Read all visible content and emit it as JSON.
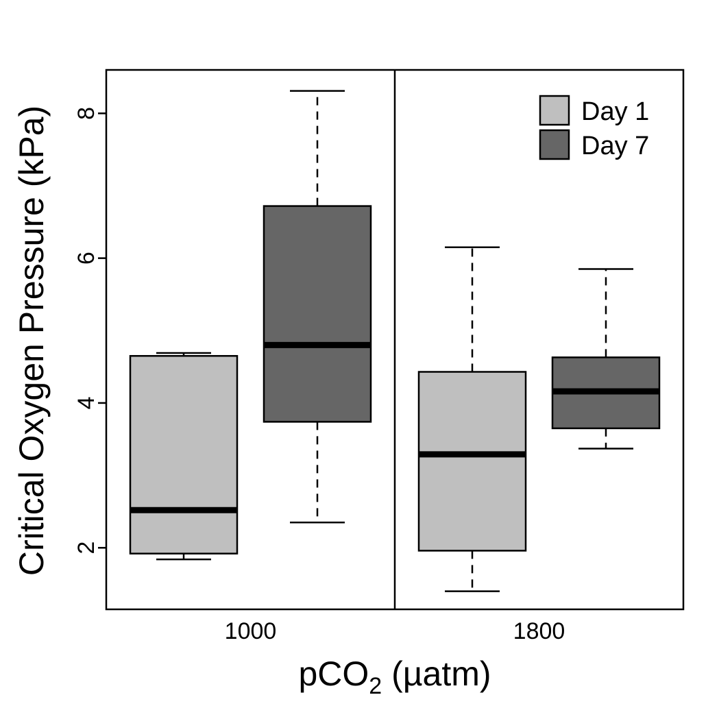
{
  "chart_data": {
    "type": "box",
    "xlabel_parts": [
      "pCO",
      "2",
      " (µatm)"
    ],
    "ylabel": "Critical Oxygen Pressure (kPa)",
    "ylim": [
      1.15,
      8.6
    ],
    "yticks": [
      2,
      4,
      6,
      8
    ],
    "groups": [
      "1000",
      "1800"
    ],
    "legend_position": "top-right",
    "grid": false,
    "series": [
      {
        "name": "Day 1",
        "color": "#bfbfbf",
        "boxes": [
          {
            "group": "1000",
            "whisker_low": 1.84,
            "q1": 1.92,
            "median": 2.52,
            "q3": 4.65,
            "whisker_high": 4.69
          },
          {
            "group": "1800",
            "whisker_low": 1.4,
            "q1": 1.96,
            "median": 3.29,
            "q3": 4.43,
            "whisker_high": 6.15
          }
        ]
      },
      {
        "name": "Day 7",
        "color": "#666666",
        "boxes": [
          {
            "group": "1000",
            "whisker_low": 2.35,
            "q1": 3.74,
            "median": 4.8,
            "q3": 6.72,
            "whisker_high": 8.31
          },
          {
            "group": "1800",
            "whisker_low": 3.37,
            "q1": 3.65,
            "median": 4.16,
            "q3": 4.63,
            "whisker_high": 5.85
          }
        ]
      }
    ]
  }
}
